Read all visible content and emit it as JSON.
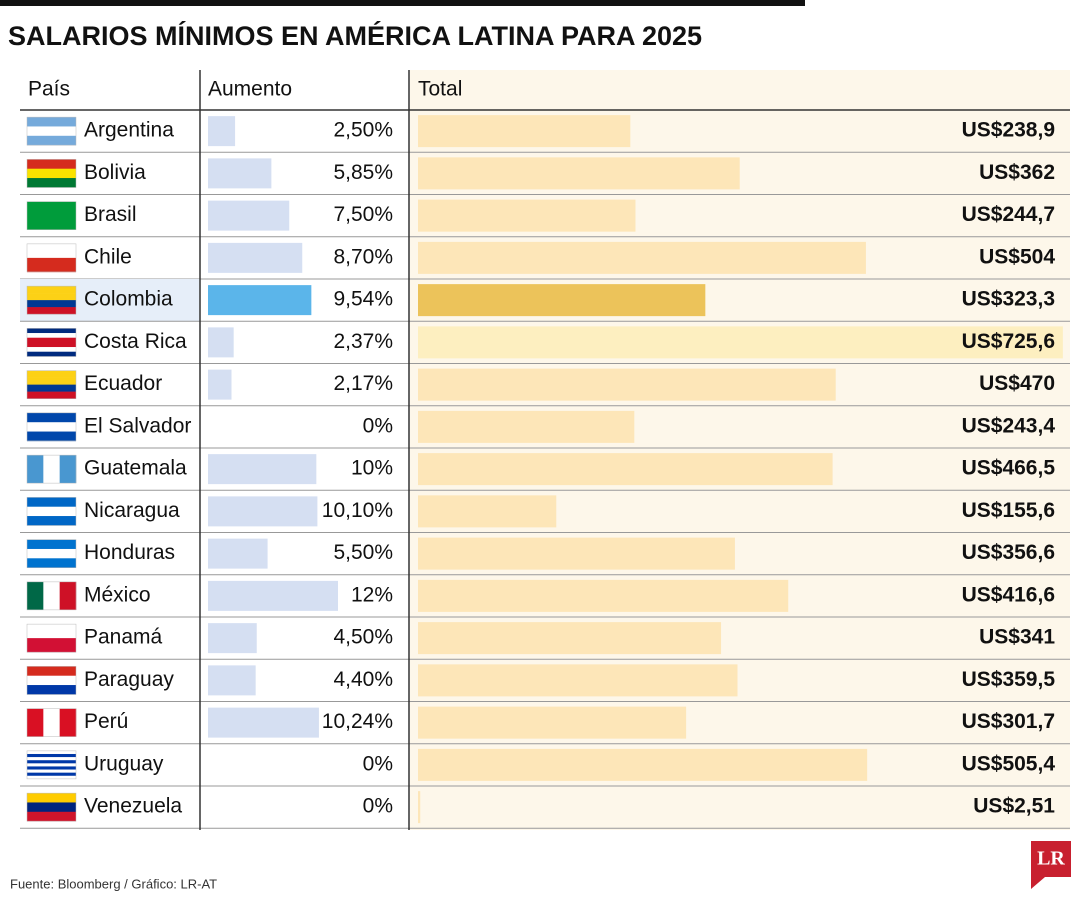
{
  "chart_data": {
    "type": "table-bar",
    "title": "SALARIOS MÍNIMOS EN AMÉRICA LATINA PARA 2025",
    "category_label": "País",
    "categories": [
      "Argentina",
      "Bolivia",
      "Brasil",
      "Chile",
      "Colombia",
      "Costa Rica",
      "Ecuador",
      "El Salvador",
      "Guatemala",
      "Nicaragua",
      "Honduras",
      "México",
      "Panamá",
      "Paraguay",
      "Perú",
      "Uruguay",
      "Venezuela"
    ],
    "series": [
      {
        "name": "Aumento",
        "color": "#d5dff2",
        "colors": [
          "#d5dff2",
          "#d5dff2",
          "#d5dff2",
          "#d5dff2",
          "#5bb5ea",
          "#d5dff2",
          "#d5dff2",
          "#d5dff2",
          "#d5dff2",
          "#d5dff2",
          "#d5dff2",
          "#d5dff2",
          "#d5dff2",
          "#d5dff2",
          "#d5dff2",
          "#d5dff2",
          "#d5dff2"
        ],
        "xlim": [
          0,
          18
        ],
        "values": [
          2.5,
          5.85,
          7.5,
          8.7,
          9.54,
          2.37,
          2.17,
          0,
          10,
          10.1,
          5.5,
          12,
          4.5,
          4.4,
          10.24,
          0,
          0
        ],
        "value_labels": [
          "2,50%",
          "5,85%",
          "7,50%",
          "8,70%",
          "9,54%",
          "2,37%",
          "2,17%",
          "0%",
          "10%",
          "10,10%",
          "5,50%",
          "12%",
          "4,50%",
          "4,40%",
          "10,24%",
          "0%",
          "0%"
        ]
      },
      {
        "name": "Total",
        "color": "#fde6b8",
        "colors": [
          "#fde6b8",
          "#fde6b8",
          "#fde6b8",
          "#fde6b8",
          "#ecc35a",
          "#fdefc0",
          "#fde6b8",
          "#fde6b8",
          "#fde6b8",
          "#fde6b8",
          "#fde6b8",
          "#fde6b8",
          "#fde6b8",
          "#fde6b8",
          "#fde6b8",
          "#fde6b8",
          "#fde6b8"
        ],
        "xlim": [
          0,
          728
        ],
        "values": [
          238.9,
          362,
          244.7,
          504,
          323.3,
          725.6,
          470,
          243.4,
          466.5,
          155.6,
          356.6,
          416.6,
          341,
          359.5,
          301.7,
          505.4,
          2.51
        ],
        "value_labels": [
          "US$238,9",
          "US$362",
          "US$244,7",
          "US$504",
          "US$323,3",
          "US$725,6",
          "US$470",
          "US$243,4",
          "US$466,5",
          "US$155,6",
          "US$356,6",
          "US$416,6",
          "US$341",
          "US$359,5",
          "US$301,7",
          "US$505,4",
          "US$2,51"
        ]
      }
    ],
    "source": "Fuente: Bloomberg / Gráfico: LR-AT",
    "logo": "LR"
  }
}
